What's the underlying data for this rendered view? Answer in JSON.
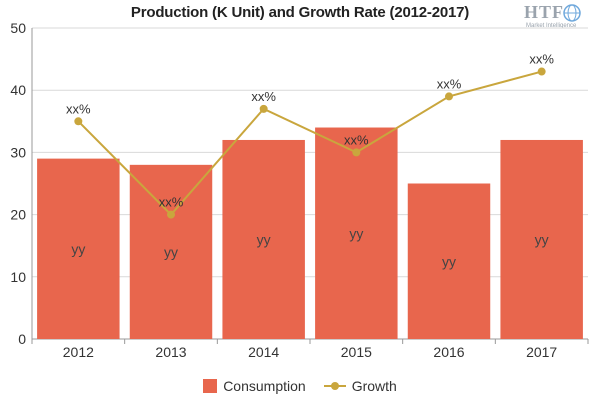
{
  "chart_data": {
    "type": "bar",
    "title": "Production (K Unit) and Growth Rate (2012-2017)",
    "categories": [
      "2012",
      "2013",
      "2014",
      "2015",
      "2016",
      "2017"
    ],
    "ylim": [
      0,
      50
    ],
    "yticks": [
      0,
      10,
      20,
      30,
      40,
      50
    ],
    "grid": true,
    "legend_position": "bottom",
    "series": [
      {
        "name": "Consumption",
        "type": "bar",
        "color": "#e8664d",
        "values": [
          29,
          28,
          32,
          34,
          25,
          32
        ],
        "labels": [
          "yy",
          "yy",
          "yy",
          "yy",
          "yy",
          "yy"
        ]
      },
      {
        "name": "Growth",
        "type": "line",
        "color": "#c9a63d",
        "values": [
          35,
          20,
          37,
          30,
          39,
          43
        ],
        "labels": [
          "xx%",
          "xx%",
          "xx%",
          "xx%",
          "xx%",
          "xx%"
        ]
      }
    ]
  },
  "logo": {
    "text": "HTF",
    "subtext": "Market Intelligence"
  }
}
